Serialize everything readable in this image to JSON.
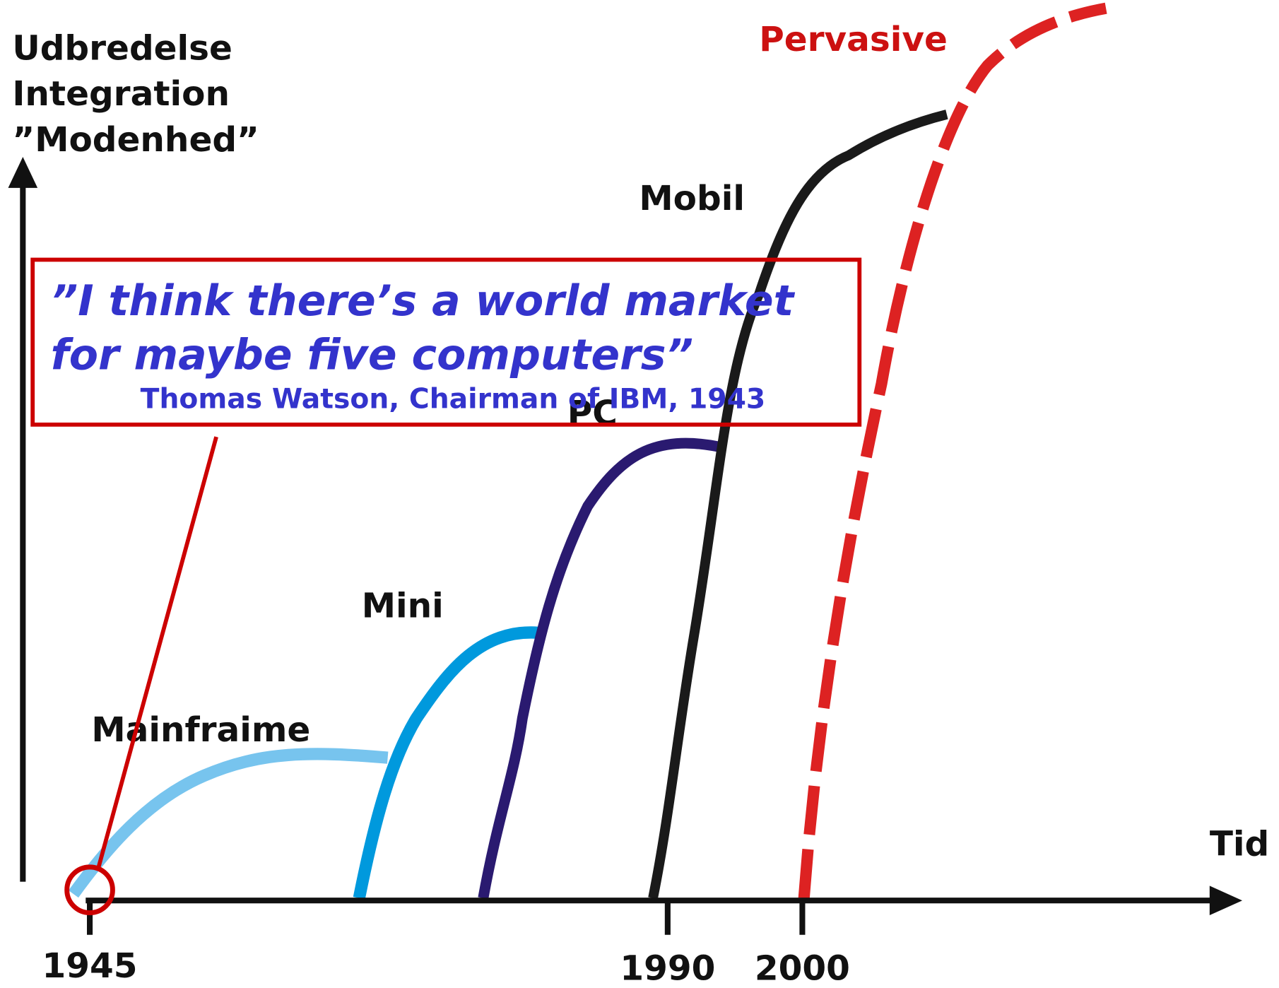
{
  "y_axis_label": [
    "Udbredelse",
    "Integration",
    "”Modenhed”"
  ],
  "x_axis_label": "Tid",
  "x_ticks": [
    "1945",
    "1990",
    "2000"
  ],
  "curves": [
    "Mainfraime",
    "Mini",
    "PC",
    "Mobil",
    "Pervasive"
  ],
  "quote": {
    "lines": [
      "”I think there’s a world market",
      "for maybe five computers”"
    ],
    "attribution": "Thomas Watson, Chairman of IBM, 1943"
  }
}
